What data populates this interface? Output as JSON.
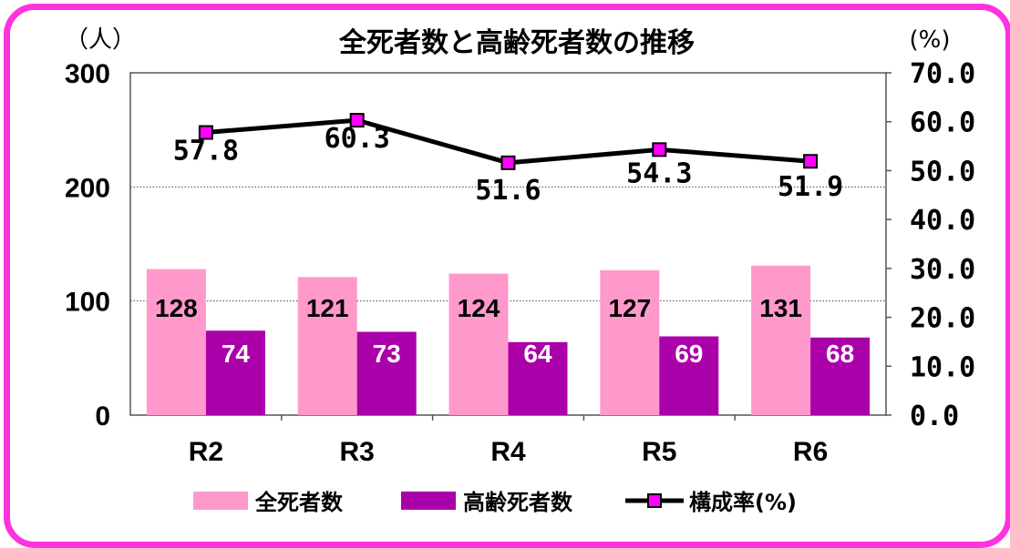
{
  "chart_data": {
    "type": "bar",
    "title": "全死者数と高齢死者数の推移",
    "left_unit": "（人）",
    "right_unit": "(%)",
    "categories": [
      "R2",
      "R3",
      "R4",
      "R5",
      "R6"
    ],
    "series": [
      {
        "name": "全死者数",
        "type": "bar",
        "axis": "left",
        "values": [
          128,
          121,
          124,
          127,
          131
        ],
        "color": "#ff99cc"
      },
      {
        "name": "高齢死者数",
        "type": "bar",
        "axis": "left",
        "values": [
          74,
          73,
          64,
          69,
          68
        ],
        "color": "#aa00aa"
      },
      {
        "name": "構成率(%)",
        "type": "line",
        "axis": "right",
        "values": [
          57.8,
          60.3,
          51.6,
          54.3,
          51.9
        ],
        "labels": [
          "57.8",
          "60.3",
          "51.6",
          "54.3",
          "51.9"
        ],
        "line_color": "#000000",
        "marker_color": "#ff00ff"
      }
    ],
    "y_left": {
      "ylim": [
        0,
        300
      ],
      "ticks": [
        "0",
        "100",
        "200",
        "300"
      ]
    },
    "y_right": {
      "ylim": [
        0,
        70
      ],
      "ticks": [
        "0.0",
        "10.0",
        "20.0",
        "30.0",
        "40.0",
        "50.0",
        "60.0",
        "70.0"
      ]
    },
    "grid": "horizontal dotted",
    "legend": "bottom"
  }
}
